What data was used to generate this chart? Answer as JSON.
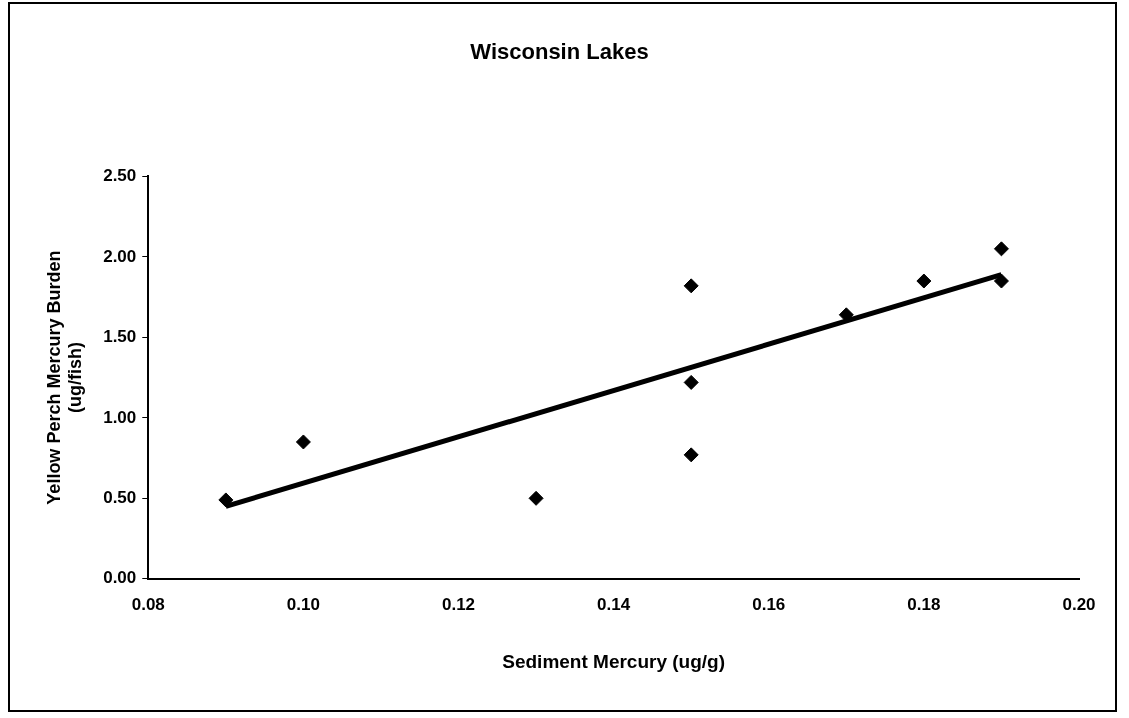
{
  "chart_data": {
    "type": "scatter",
    "title": "Wisconsin Lakes",
    "xlabel": "Sediment Mercury (ug/g)",
    "ylabel": "Yellow Perch Mercury Burden\n(ug/fish)",
    "series": [
      {
        "color": "#000000",
        "marker": "diamond",
        "x": [
          0.09,
          0.1,
          0.13,
          0.15,
          0.15,
          0.15,
          0.17,
          0.18,
          0.19,
          0.19
        ],
        "values": [
          0.49,
          0.85,
          0.5,
          1.82,
          1.22,
          0.77,
          1.64,
          1.85,
          2.05,
          1.85
        ]
      },
      {
        "type": "line",
        "marker": "none",
        "color": "#000000",
        "x": [
          0.09,
          0.19
        ],
        "values": [
          0.45,
          1.89
        ]
      }
    ],
    "line_style": "solid",
    "grid": false,
    "legend": false,
    "xlim": [
      0.08,
      0.2
    ],
    "ylim": [
      0,
      2.5
    ],
    "xticks": [
      {
        "value": 0.08,
        "label": "0.08"
      },
      {
        "value": 0.1,
        "label": "0.10"
      },
      {
        "value": 0.12,
        "label": "0.12"
      },
      {
        "value": 0.14,
        "label": "0.14"
      },
      {
        "value": 0.16,
        "label": "0.16"
      },
      {
        "value": 0.18,
        "label": "0.18"
      },
      {
        "value": 0.2,
        "label": "0.20"
      }
    ],
    "yticks": [
      {
        "value": 0,
        "label": "0.00"
      },
      {
        "value": 0.5,
        "label": "0.50"
      },
      {
        "value": 1,
        "label": "1.00"
      },
      {
        "value": 1.5,
        "label": "1.50"
      },
      {
        "value": 2,
        "label": "2.00"
      },
      {
        "value": 2.5,
        "label": "2.50"
      }
    ]
  }
}
